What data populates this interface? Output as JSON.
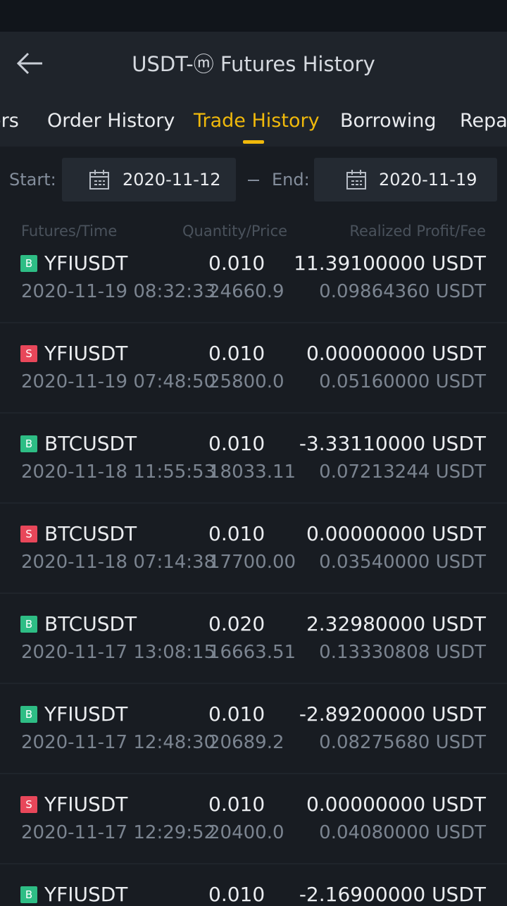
{
  "header": {
    "title": "USDT-ⓜ Futures History"
  },
  "tabs": [
    "ers",
    "Order History",
    "Trade History",
    "Borrowing",
    "Repay"
  ],
  "active_tab": 2,
  "filter": {
    "start_label": "Start:",
    "start_date": "2020-11-12",
    "end_label": "End:",
    "end_date": "2020-11-19"
  },
  "columns": [
    "Futures/Time",
    "Quantity/Price",
    "Realized Profit/Fee"
  ],
  "rows": [
    {
      "side": "B",
      "symbol": "YFIUSDT",
      "time": "2020-11-19 08:32:33",
      "quantity": "0.010",
      "price": "24660.9",
      "profit": "11.39100000 USDT",
      "fee": "0.09864360 USDT"
    },
    {
      "side": "S",
      "symbol": "YFIUSDT",
      "time": "2020-11-19 07:48:50",
      "quantity": "0.010",
      "price": "25800.0",
      "profit": "0.00000000 USDT",
      "fee": "0.05160000 USDT"
    },
    {
      "side": "B",
      "symbol": "BTCUSDT",
      "time": "2020-11-18 11:55:53",
      "quantity": "0.010",
      "price": "18033.11",
      "profit": "-3.33110000 USDT",
      "fee": "0.07213244 USDT"
    },
    {
      "side": "S",
      "symbol": "BTCUSDT",
      "time": "2020-11-18 07:14:38",
      "quantity": "0.010",
      "price": "17700.00",
      "profit": "0.00000000 USDT",
      "fee": "0.03540000 USDT"
    },
    {
      "side": "B",
      "symbol": "BTCUSDT",
      "time": "2020-11-17 13:08:15",
      "quantity": "0.020",
      "price": "16663.51",
      "profit": "2.32980000 USDT",
      "fee": "0.13330808 USDT"
    },
    {
      "side": "B",
      "symbol": "YFIUSDT",
      "time": "2020-11-17 12:48:30",
      "quantity": "0.010",
      "price": "20689.2",
      "profit": "-2.89200000 USDT",
      "fee": "0.08275680 USDT"
    },
    {
      "side": "S",
      "symbol": "YFIUSDT",
      "time": "2020-11-17 12:29:52",
      "quantity": "0.010",
      "price": "20400.0",
      "profit": "0.00000000 USDT",
      "fee": "0.04080000 USDT"
    },
    {
      "side": "B",
      "symbol": "YFIUSDT",
      "time": "",
      "quantity": "0.010",
      "price": "",
      "profit": "-2.16900000 USDT",
      "fee": ""
    }
  ]
}
